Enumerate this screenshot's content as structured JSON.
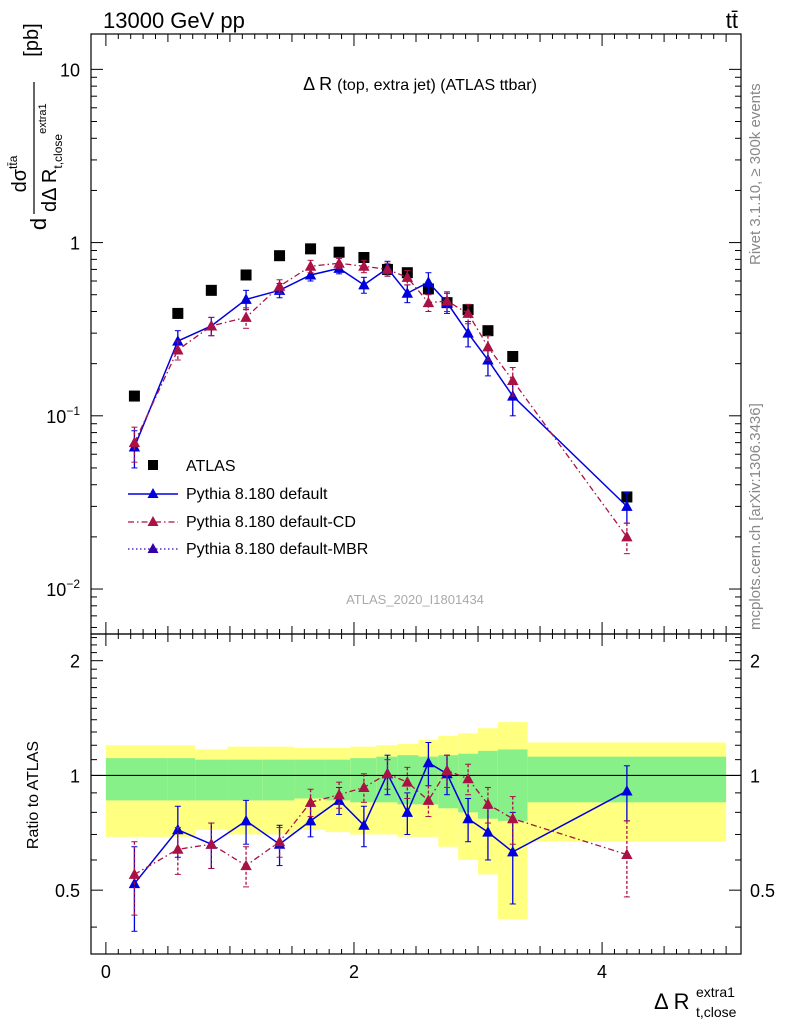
{
  "header": {
    "energy": "13000 GeV pp",
    "process": "tt̄"
  },
  "side": {
    "rivet": "Rivet 3.1.10, ≥ 300k events",
    "mcplots": "mcplots.cern.ch [arXiv:1306.3436]"
  },
  "chart_data": [
    {
      "type": "scatter",
      "title_main": "Δ R",
      "title_detail": "(top, extra jet) (ATLAS ttbar)",
      "analysis": "ATLAS_2020_I1801434",
      "ylabel_d": "d",
      "ylabel_numerator": "dσ",
      "ylabel_num_sup": "tt̄a",
      "ylabel_denominator": "dΔ R",
      "ylabel_den_sub": "t,close",
      "ylabel_den_sup": "extra1",
      "ylabel_unit": "[pb]",
      "yscale": "log",
      "ylim": [
        0.0055,
        16
      ],
      "xlim": [
        -0.12,
        5.12
      ],
      "ytick_labels": [
        {
          "value": 10,
          "base": "10",
          "exp": ""
        },
        {
          "value": 1,
          "base": "1",
          "exp": ""
        },
        {
          "value": 0.1,
          "base": "10",
          "exp": "−1"
        },
        {
          "value": 0.01,
          "base": "10",
          "exp": "−2"
        }
      ],
      "legend_position": "bottom-left",
      "x": [
        0.23,
        0.58,
        0.85,
        1.13,
        1.4,
        1.65,
        1.88,
        2.08,
        2.27,
        2.43,
        2.6,
        2.75,
        2.92,
        3.08,
        3.28,
        4.2
      ],
      "series": [
        {
          "name": "ATLAS",
          "color": "#000000",
          "marker": "square",
          "values": [
            0.13,
            0.39,
            0.53,
            0.65,
            0.84,
            0.92,
            0.88,
            0.82,
            0.7,
            0.67,
            0.54,
            0.45,
            0.41,
            0.31,
            0.22,
            0.034
          ]
        },
        {
          "name": "Pythia 8.180 default",
          "color": "#0000dd",
          "marker": "triangle",
          "line": "solid",
          "values": [
            0.066,
            0.27,
            0.33,
            0.47,
            0.53,
            0.65,
            0.71,
            0.57,
            0.71,
            0.51,
            0.59,
            0.45,
            0.3,
            0.21,
            0.13,
            0.03
          ],
          "errors": [
            0.016,
            0.04,
            0.04,
            0.06,
            0.05,
            0.05,
            0.05,
            0.06,
            0.07,
            0.06,
            0.08,
            0.06,
            0.05,
            0.04,
            0.03,
            0.006
          ]
        },
        {
          "name": "Pythia 8.180 default-CD",
          "color": "#aa1144",
          "marker": "triangle",
          "line": "dashdot",
          "values": [
            0.07,
            0.24,
            0.33,
            0.37,
            0.56,
            0.73,
            0.76,
            0.73,
            0.7,
            0.63,
            0.45,
            0.46,
            0.39,
            0.25,
            0.16,
            0.02
          ],
          "errors": [
            0.016,
            0.03,
            0.04,
            0.05,
            0.05,
            0.06,
            0.05,
            0.06,
            0.06,
            0.06,
            0.05,
            0.06,
            0.05,
            0.04,
            0.03,
            0.004
          ]
        }
      ],
      "legend_extra": [
        {
          "name": "Pythia 8.180 default-MBR",
          "color": "#3300aa",
          "marker": "triangle",
          "line": "dotted"
        }
      ]
    },
    {
      "type": "scatter",
      "ylabel": "Ratio to ATLAS",
      "xlabel_main": "Δ R",
      "xlabel_sub": "t,close",
      "xlabel_sup": "extra1",
      "ylim": [
        0.34,
        2.35
      ],
      "xlim": [
        -0.12,
        5.12
      ],
      "xticks": [
        0,
        2,
        4
      ],
      "yticks": [
        0.5,
        1,
        2
      ],
      "reference": 1,
      "bands": [
        {
          "x0": 0.0,
          "x1": 0.5,
          "inner": [
            0.86,
            1.11
          ],
          "outer": [
            0.69,
            1.2
          ]
        },
        {
          "x0": 0.5,
          "x1": 0.72,
          "inner": [
            0.86,
            1.11
          ],
          "outer": [
            0.69,
            1.2
          ]
        },
        {
          "x0": 0.72,
          "x1": 0.98,
          "inner": [
            0.86,
            1.1
          ],
          "outer": [
            0.72,
            1.17
          ]
        },
        {
          "x0": 0.98,
          "x1": 1.26,
          "inner": [
            0.86,
            1.1
          ],
          "outer": [
            0.7,
            1.19
          ]
        },
        {
          "x0": 1.26,
          "x1": 1.52,
          "inner": [
            0.86,
            1.1
          ],
          "outer": [
            0.7,
            1.19
          ]
        },
        {
          "x0": 1.52,
          "x1": 1.77,
          "inner": [
            0.87,
            1.1
          ],
          "outer": [
            0.72,
            1.18
          ]
        },
        {
          "x0": 1.77,
          "x1": 1.97,
          "inner": [
            0.86,
            1.1
          ],
          "outer": [
            0.71,
            1.18
          ]
        },
        {
          "x0": 1.97,
          "x1": 2.18,
          "inner": [
            0.85,
            1.11
          ],
          "outer": [
            0.7,
            1.19
          ]
        },
        {
          "x0": 2.18,
          "x1": 2.35,
          "inner": [
            0.85,
            1.12
          ],
          "outer": [
            0.7,
            1.2
          ]
        },
        {
          "x0": 2.35,
          "x1": 2.52,
          "inner": [
            0.84,
            1.13
          ],
          "outer": [
            0.69,
            1.21
          ]
        },
        {
          "x0": 2.52,
          "x1": 2.68,
          "inner": [
            0.84,
            1.12
          ],
          "outer": [
            0.69,
            1.24
          ]
        },
        {
          "x0": 2.68,
          "x1": 2.84,
          "inner": [
            0.82,
            1.13
          ],
          "outer": [
            0.65,
            1.27
          ]
        },
        {
          "x0": 2.84,
          "x1": 3.0,
          "inner": [
            0.8,
            1.14
          ],
          "outer": [
            0.6,
            1.29
          ]
        },
        {
          "x0": 3.0,
          "x1": 3.16,
          "inner": [
            0.77,
            1.16
          ],
          "outer": [
            0.55,
            1.33
          ]
        },
        {
          "x0": 3.16,
          "x1": 3.4,
          "inner": [
            0.76,
            1.17
          ],
          "outer": [
            0.42,
            1.38
          ]
        },
        {
          "x0": 3.4,
          "x1": 5.0,
          "inner": [
            0.85,
            1.12
          ],
          "outer": [
            0.67,
            1.22
          ]
        }
      ],
      "x": [
        0.23,
        0.58,
        0.85,
        1.13,
        1.4,
        1.65,
        1.88,
        2.08,
        2.27,
        2.43,
        2.6,
        2.75,
        2.92,
        3.08,
        3.28,
        4.2
      ],
      "series": [
        {
          "name": "Pythia 8.180 default",
          "color": "#0000dd",
          "values": [
            0.52,
            0.72,
            0.66,
            0.76,
            0.66,
            0.76,
            0.86,
            0.74,
            1.01,
            0.8,
            1.08,
            1.01,
            0.77,
            0.71,
            0.63,
            0.91
          ],
          "errors": [
            0.13,
            0.11,
            0.09,
            0.1,
            0.08,
            0.07,
            0.07,
            0.09,
            0.12,
            0.1,
            0.14,
            0.12,
            0.1,
            0.11,
            0.17,
            0.15
          ]
        },
        {
          "name": "Pythia 8.180 default-CD",
          "color": "#aa1144",
          "values": [
            0.55,
            0.64,
            0.66,
            0.58,
            0.67,
            0.85,
            0.89,
            0.93,
            1.01,
            0.96,
            0.86,
            1.03,
            0.98,
            0.84,
            0.77,
            0.62
          ],
          "errors": [
            0.12,
            0.09,
            0.09,
            0.07,
            0.06,
            0.07,
            0.07,
            0.08,
            0.09,
            0.09,
            0.08,
            0.1,
            0.09,
            0.09,
            0.11,
            0.14
          ]
        }
      ]
    }
  ]
}
